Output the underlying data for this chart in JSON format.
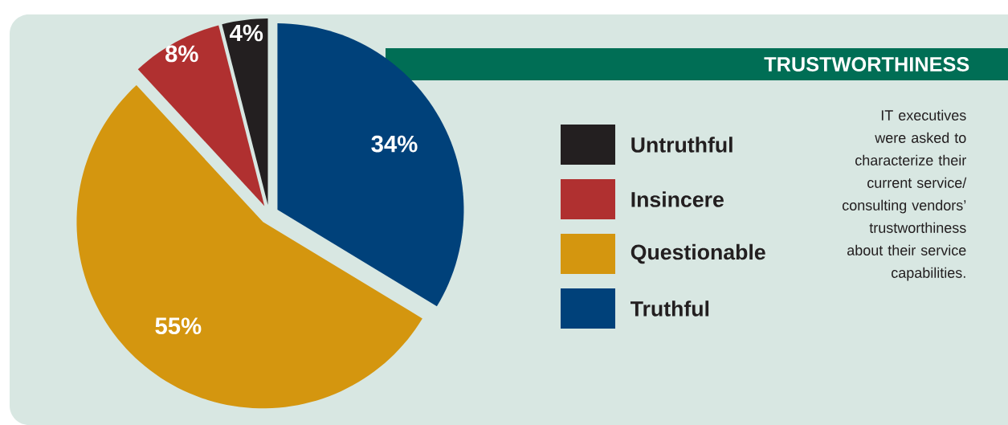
{
  "chart_data": {
    "type": "pie",
    "title": "TRUSTWORTHINESS",
    "categories": [
      "Truthful",
      "Questionable",
      "Insincere",
      "Untruthful"
    ],
    "values": [
      34,
      55,
      8,
      4
    ],
    "colors": [
      "#00417a",
      "#d4960f",
      "#b03030",
      "#231f20"
    ],
    "value_labels": [
      "34%",
      "55%",
      "8%",
      "4%"
    ],
    "legend": "right",
    "annotations": [
      "IT executives were asked to characterize their current service/ consulting vendors’ trustworthiness about their service capabilities."
    ]
  }
}
